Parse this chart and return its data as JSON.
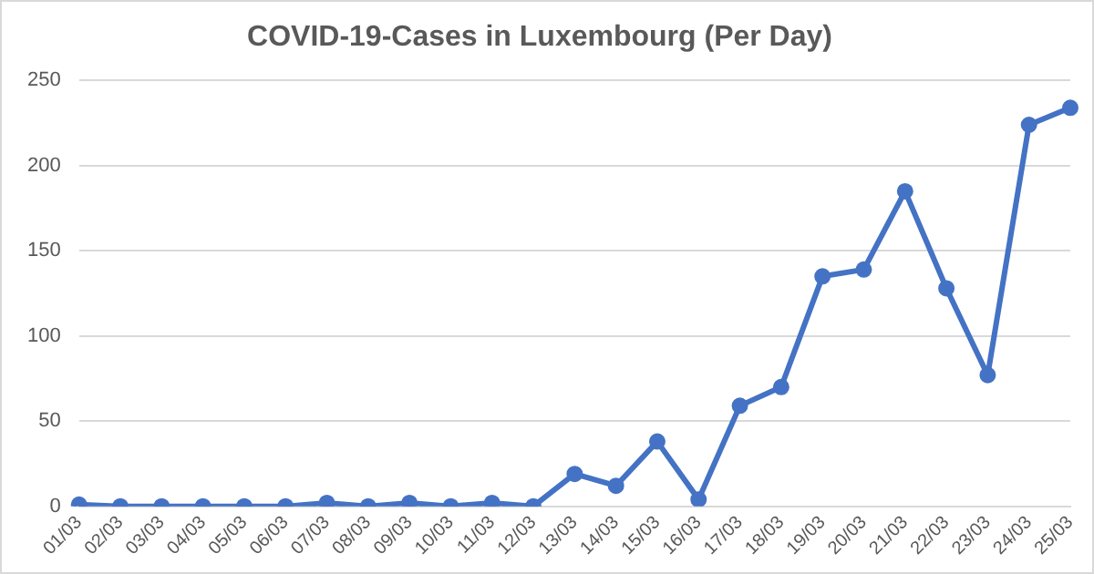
{
  "chart_data": {
    "type": "line",
    "title": "COVID-19-Cases in Luxembourg (Per Day)",
    "categories": [
      "01/03",
      "02/03",
      "03/03",
      "04/03",
      "05/03",
      "06/03",
      "07/03",
      "08/03",
      "09/03",
      "10/03",
      "11/03",
      "12/03",
      "13/03",
      "14/03",
      "15/03",
      "16/03",
      "17/03",
      "18/03",
      "19/03",
      "20/03",
      "21/03",
      "22/03",
      "23/03",
      "24/03",
      "25/03"
    ],
    "series": [
      {
        "color": "#4472c4",
        "values": [
          1,
          0,
          0,
          0,
          0,
          0,
          2,
          0,
          2,
          0,
          2,
          0,
          19,
          12,
          38,
          4,
          59,
          70,
          135,
          139,
          185,
          128,
          77,
          224,
          234
        ]
      }
    ],
    "ylim": [
      0,
      250
    ],
    "yticks": [
      0,
      50,
      100,
      150,
      200,
      250
    ],
    "grid": "y",
    "legend": false,
    "marker": "circle",
    "line_style": "solid"
  }
}
